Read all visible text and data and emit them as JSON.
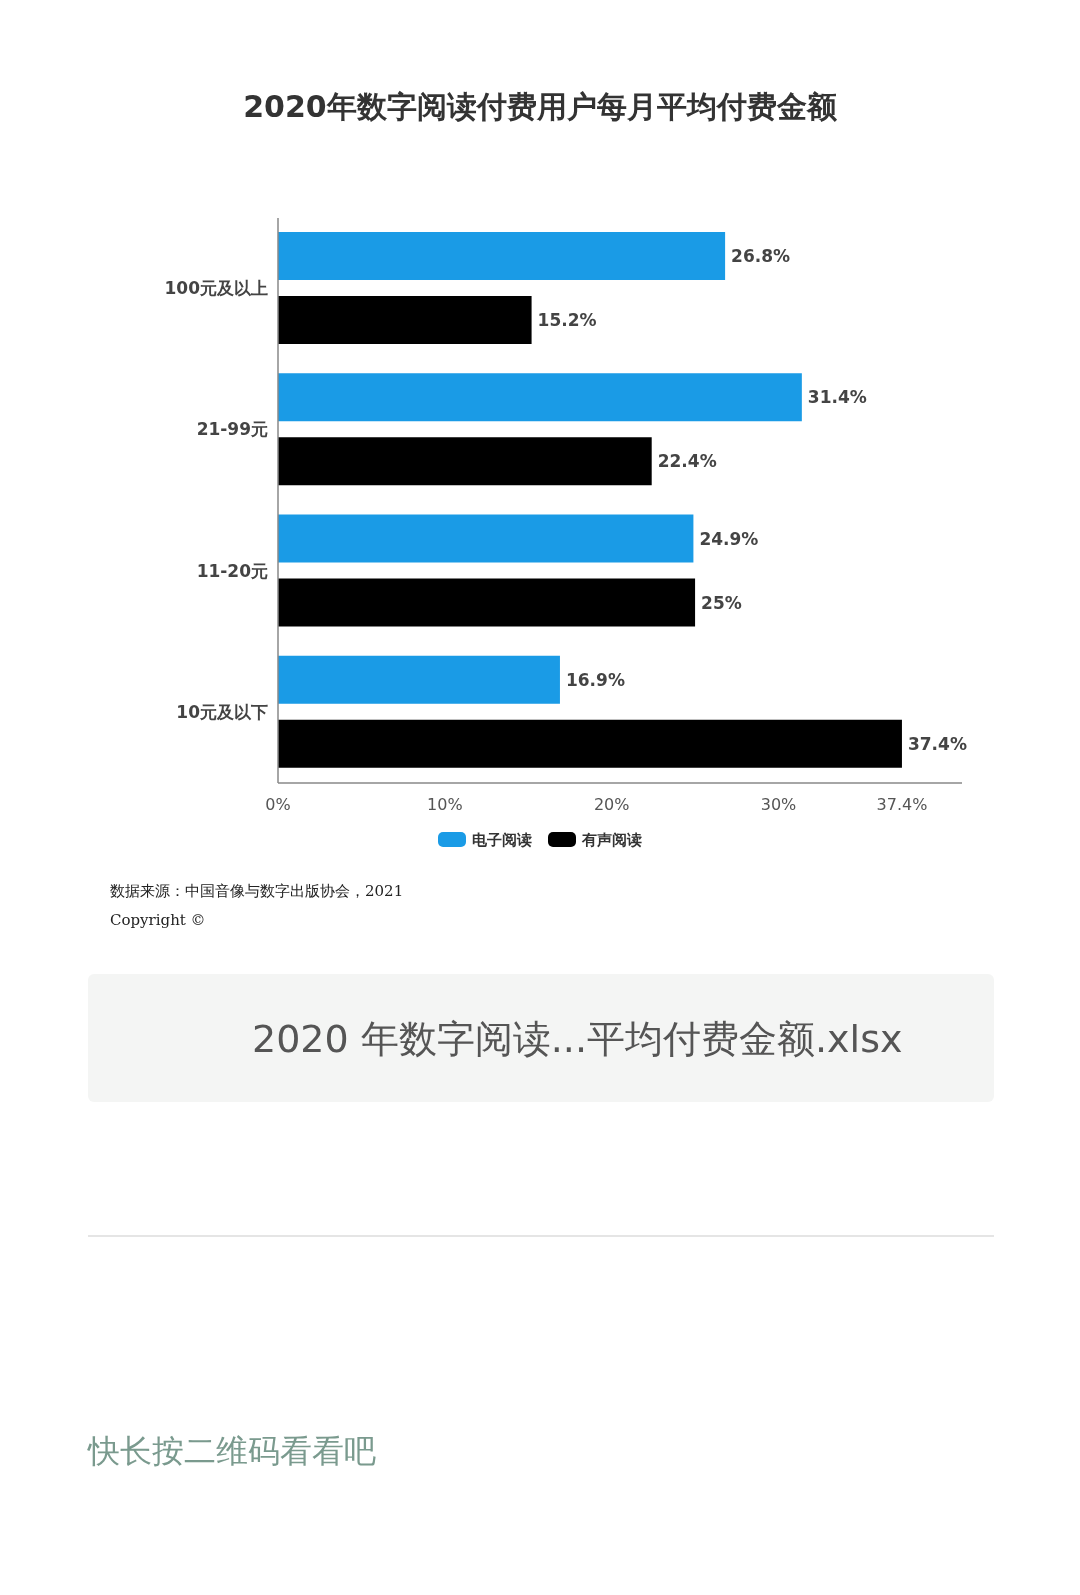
{
  "chart_data": {
    "type": "bar",
    "orientation": "horizontal",
    "title": "2020年数字阅读付费用户每月平均付费金额",
    "categories": [
      "100元及以上",
      "21-99元",
      "11-20元",
      "10元及以下"
    ],
    "series": [
      {
        "name": "电子阅读",
        "color": "#1a9be6",
        "values": [
          26.8,
          31.4,
          24.9,
          16.9
        ],
        "value_labels": [
          "26.8%",
          "31.4%",
          "24.9%",
          "16.9%"
        ]
      },
      {
        "name": "有声阅读",
        "color": "#000000",
        "values": [
          15.2,
          22.4,
          25,
          37.4
        ],
        "value_labels": [
          "15.2%",
          "22.4%",
          "25%",
          "37.4%"
        ]
      }
    ],
    "xlim": [
      0,
      41
    ],
    "xticks": [
      {
        "value": 0,
        "label": "0%"
      },
      {
        "value": 10,
        "label": "10%"
      },
      {
        "value": 20,
        "label": "20%"
      },
      {
        "value": 30,
        "label": "30%"
      },
      {
        "value": 37.4,
        "label": "37.4%"
      }
    ],
    "grid": false,
    "legend": "bottom",
    "annotations": [
      "数据来源：中国音像与数字出版协会，2021",
      "Copyright ©",
      "2020 年数字阅读...平均付费金额.xlsx",
      "快长按二维码看看吧"
    ]
  }
}
